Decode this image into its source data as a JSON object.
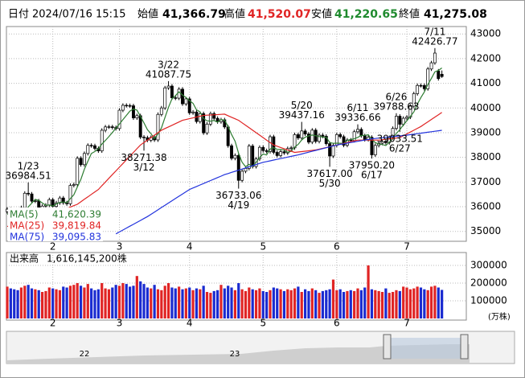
{
  "chart_data": {
    "type": "candlestick",
    "header": {
      "date_label": "日付",
      "date": "2024/07/16 15:15",
      "open_label": "始値",
      "open": "41,366.79",
      "high_label": "高値",
      "high": "41,520.07",
      "low_label": "安値",
      "low": "41,220.65",
      "close_label": "終値",
      "close": "41,275.08"
    },
    "categories": [
      null,
      null,
      null,
      null,
      null,
      null,
      null,
      null,
      null,
      null,
      null,
      null,
      null,
      "2",
      null,
      null,
      null,
      null,
      null,
      null,
      null,
      null,
      null,
      null,
      null,
      null,
      null,
      null,
      null,
      null,
      null,
      null,
      "3",
      null,
      null,
      null,
      null,
      null,
      null,
      null,
      null,
      null,
      null,
      null,
      null,
      null,
      null,
      null,
      null,
      null,
      null,
      null,
      "4",
      null,
      null,
      null,
      null,
      null,
      null,
      null,
      null,
      null,
      null,
      null,
      null,
      null,
      null,
      null,
      null,
      null,
      null,
      null,
      null,
      "5",
      null,
      null,
      null,
      null,
      null,
      null,
      null,
      null,
      null,
      null,
      null,
      null,
      null,
      null,
      null,
      null,
      null,
      null,
      null,
      null,
      "6",
      null,
      null,
      null,
      null,
      null,
      null,
      null,
      null,
      null,
      null,
      null,
      null,
      null,
      null,
      null,
      null,
      null,
      null,
      null,
      "7",
      null,
      null,
      null,
      null,
      null,
      null,
      null,
      null,
      null,
      null
    ],
    "open": [
      35800,
      35901,
      35619,
      35477,
      35466,
      35963,
      36546,
      36517,
      36226,
      36236,
      35751,
      36026,
      36065,
      36286,
      36011,
      36158,
      36354,
      36160,
      36119,
      36863,
      36897,
      37963,
      37703,
      38157,
      38487,
      38470,
      38363,
      38262,
      39098,
      39233,
      39239,
      39208,
      39166,
      39910,
      40109,
      40097,
      40090,
      39598,
      39688,
      38820,
      38797,
      38695,
      38807,
      38707,
      39740,
      40003,
      40815,
      40888,
      40414,
      40398,
      40762,
      40168,
      40369,
      39803,
      39838,
      39451,
      39773,
      38992,
      39347,
      39773,
      39581,
      39442,
      39523,
      39232,
      38471,
      37962,
      38079,
      37068,
      37438,
      37552,
      38460,
      37628,
      37934,
      38405,
      38274,
      38236,
      38835,
      38202,
      38073,
      38229,
      38179,
      38356,
      38385,
      38920,
      38787,
      39069,
      38946,
      38617,
      39103,
      38646,
      38900,
      38855,
      38556,
      38054,
      38487,
      38923,
      38837,
      38490,
      38703,
      38683,
      39038,
      39134,
      38876,
      38720,
      38814,
      38102,
      38482,
      38570,
      38633,
      38596,
      38804,
      39173,
      39667,
      39341,
      39583,
      39631,
      40074,
      40580,
      40913,
      40912,
      40780,
      41580,
      41831,
      41500,
      41366.79
    ],
    "high": [
      35981,
      35981,
      35699,
      35557,
      36043,
      36626,
      36984.51,
      36597,
      36316,
      36316,
      36106,
      36145,
      36366,
      36366,
      36238,
      36434,
      36434,
      36240,
      36943,
      36977,
      38043,
      38043,
      38237,
      38567,
      38567,
      38550,
      38443,
      39178,
      39313,
      39319,
      39319,
      39288,
      39990,
      40189,
      40189,
      40177,
      40170,
      39768,
      39768,
      38900,
      38877,
      38887,
      38887,
      39820,
      40083,
      40895,
      41087.75,
      40968,
      40494,
      40842,
      40842,
      40449,
      40449,
      39918,
      39918,
      39853,
      39853,
      39427,
      39853,
      39853,
      39661,
      39603,
      39603,
      39312,
      38551,
      38159,
      38159,
      37518,
      37632,
      38540,
      38540,
      38014,
      38485,
      38485,
      38354,
      38915,
      38915,
      38282,
      38309,
      38309,
      38436,
      38465,
      39000,
      39000,
      39437.16,
      39149,
      39026,
      39183,
      39183,
      38980,
      38980,
      38935,
      38636,
      38567,
      39003,
      39003,
      38917,
      38783,
      38783,
      39118,
      39336.66,
      39214,
      38956,
      38894,
      38894,
      38562,
      38650,
      38713,
      38713,
      38884,
      39253,
      39788.63,
      39747,
      39663,
      39711,
      40154,
      40660,
      40993,
      40993,
      40992,
      41660,
      41911,
      42426.77,
      41580,
      41520.07
    ],
    "low": [
      35720,
      35539,
      35397,
      35386,
      35386,
      35883,
      36437,
      36146,
      36146,
      35671,
      35671,
      35946,
      35985,
      35931,
      35931,
      36078,
      36080,
      36039,
      36039,
      36783,
      36817,
      37623,
      37623,
      38077,
      38390,
      38283,
      38182,
      38182,
      39018,
      39153,
      39128,
      39086,
      39086,
      39830,
      40017,
      40010,
      39518,
      39518,
      38740,
      38271.38,
      38615,
      38615,
      38627,
      38627,
      39660,
      39923,
      40735,
      40334,
      40318,
      40318,
      40088,
      40088,
      39723,
      39723,
      39371,
      39371,
      38912,
      38912,
      39267,
      39501,
      39362,
      39362,
      39152,
      38391,
      37882,
      37882,
      36733.06,
      36988,
      37358,
      37472,
      37548,
      37548,
      37854,
      38194,
      38156,
      38156,
      38122,
      37993,
      37993,
      38099,
      38099,
      38276,
      38305,
      38707,
      38707,
      38866,
      38537,
      38537,
      38566,
      38566,
      38775,
      38476,
      37617,
      37974,
      38407,
      38757,
      38410,
      38410,
      38603,
      38603,
      38958,
      38796,
      38640,
      38640,
      37950.2,
      38022,
      38402,
      38490,
      38516,
      38516,
      38724,
      39093,
      39033.51,
      39261,
      39503,
      39551,
      39994,
      40500,
      40832,
      40700,
      40700,
      41500,
      41751,
      41110,
      41220.65
    ],
    "close": [
      35901,
      35619,
      35477,
      35466,
      35963,
      36546,
      36517,
      36226,
      36236,
      35751,
      36026,
      36065,
      36286,
      36011,
      36158,
      36354,
      36160,
      36119,
      36863,
      36897,
      37963,
      37703,
      38157,
      38487,
      38470,
      38363,
      38262,
      39098,
      39233,
      39239,
      39208,
      39166,
      39910,
      40109,
      40097,
      40090,
      39598,
      39688,
      38820,
      38797,
      38695,
      38807,
      38707,
      39740,
      40003,
      40815,
      40888,
      40414,
      40398,
      40762,
      40168,
      40369,
      39803,
      39838,
      39451,
      39773,
      38992,
      39347,
      39773,
      39581,
      39442,
      39523,
      39232,
      38471,
      37962,
      38079,
      37068,
      37438,
      37552,
      38460,
      37628,
      37934,
      38405,
      38274,
      38236,
      38835,
      38202,
      38073,
      38229,
      38179,
      38356,
      38385,
      38920,
      38787,
      39069,
      38946,
      38617,
      39103,
      38646,
      38900,
      38855,
      38556,
      38054,
      38487,
      38923,
      38837,
      38490,
      38703,
      38683,
      39038,
      39134,
      38876,
      38720,
      38814,
      38102,
      38482,
      38570,
      38633,
      38596,
      38804,
      39173,
      39667,
      39341,
      39583,
      39631,
      40074,
      40580,
      40913,
      40912,
      40780,
      41580,
      41831,
      42224,
      41190,
      41275.08
    ],
    "up_color": "#ffffff",
    "down_color": "#000000",
    "series": [
      {
        "name": "MA(5)",
        "color": "#2e7d32",
        "value_label": "41,620.39",
        "values": [
          35700,
          35700,
          35650,
          35600,
          35685,
          35814,
          35994,
          36144,
          36298,
          36255,
          36151,
          36061,
          36073,
          36028,
          36109,
          36175,
          36194,
          36160,
          36331,
          36479,
          36800,
          37109,
          37517,
          37841,
          38156,
          38236,
          38348,
          38536,
          38685,
          38839,
          39008,
          39189,
          39351,
          39526,
          39698,
          39874,
          39961,
          39916,
          39659,
          39399,
          39120,
          38961,
          38765,
          38949,
          39190,
          39614,
          40031,
          40372,
          40504,
          40655,
          40526,
          40422,
          40300,
          40188,
          39926,
          39847,
          39571,
          39480,
          39467,
          39493,
          39427,
          39533,
          39510,
          39250,
          38926,
          38653,
          38162,
          37804,
          37620,
          37719,
          37629,
          37802,
          37996,
          38140,
          38095,
          38337,
          38390,
          38324,
          38315,
          38304,
          38208,
          38244,
          38414,
          38525,
          38703,
          38821,
          38868,
          38904,
          38876,
          38842,
          38824,
          38812,
          38602,
          38570,
          38575,
          38571,
          38558,
          38688,
          38727,
          38750,
          38810,
          38887,
          38890,
          38916,
          38729,
          38599,
          38538,
          38520,
          38477,
          38617,
          38755,
          38975,
          39116,
          39314,
          39479,
          39659,
          39842,
          40156,
          40422,
          40652,
          40953,
          41203,
          41465,
          41521,
          41620.39
        ]
      },
      {
        "name": "MA(25)",
        "color": "#e02424",
        "value_label": "39,819.84",
        "values": [
          35200,
          35238,
          35275,
          35313,
          35350,
          35388,
          35425,
          35463,
          35500,
          35538,
          35575,
          35613,
          35650,
          35706,
          35763,
          35819,
          35875,
          35931,
          35988,
          36044,
          36100,
          36200,
          36300,
          36400,
          36500,
          36600,
          36700,
          36850,
          37000,
          37150,
          37300,
          37450,
          37600,
          37750,
          37900,
          38050,
          38200,
          38350,
          38500,
          38600,
          38700,
          38800,
          38900,
          39000,
          39100,
          39167,
          39233,
          39300,
          39367,
          39433,
          39500,
          39533,
          39567,
          39600,
          39633,
          39667,
          39700,
          39708,
          39717,
          39725,
          39733,
          39742,
          39750,
          39688,
          39625,
          39563,
          39500,
          39400,
          39300,
          39200,
          39100,
          39000,
          38900,
          38800,
          38700,
          38600,
          38500,
          38450,
          38400,
          38350,
          38300,
          38250,
          38200,
          38217,
          38233,
          38250,
          38267,
          38283,
          38300,
          38333,
          38367,
          38400,
          38433,
          38467,
          38500,
          38533,
          38567,
          38600,
          38633,
          38667,
          38700,
          38700,
          38700,
          38700,
          38700,
          38700,
          38700,
          38717,
          38733,
          38750,
          38767,
          38783,
          38800,
          38875,
          38950,
          39025,
          39100,
          39175,
          39250,
          39345,
          39440,
          39535,
          39630,
          39725,
          39819.84
        ]
      },
      {
        "name": "MA(75)",
        "color": "#2233dd",
        "value_label": "39,095.83",
        "values": [
          null,
          null,
          null,
          null,
          null,
          null,
          null,
          null,
          null,
          null,
          null,
          null,
          null,
          null,
          null,
          null,
          null,
          null,
          null,
          null,
          null,
          null,
          null,
          null,
          null,
          null,
          null,
          null,
          null,
          null,
          null,
          34900,
          34978,
          35056,
          35133,
          35211,
          35289,
          35367,
          35444,
          35522,
          35600,
          35692,
          35783,
          35875,
          35967,
          36058,
          36150,
          36242,
          36333,
          36425,
          36517,
          36608,
          36700,
          36760,
          36820,
          36880,
          36940,
          37000,
          37060,
          37120,
          37180,
          37240,
          37300,
          37345,
          37391,
          37436,
          37482,
          37527,
          37573,
          37618,
          37664,
          37709,
          37755,
          37800,
          37830,
          37860,
          37890,
          37920,
          37950,
          37980,
          38010,
          38040,
          38070,
          38100,
          38136,
          38173,
          38209,
          38245,
          38282,
          38318,
          38355,
          38391,
          38427,
          38464,
          38500,
          38525,
          38550,
          38575,
          38600,
          38625,
          38650,
          38675,
          38700,
          38725,
          38750,
          38765,
          38780,
          38795,
          38810,
          38825,
          38840,
          38855,
          38870,
          38885,
          38900,
          38920,
          38939,
          38959,
          38978,
          38998,
          39017,
          39037,
          39056,
          39076,
          39095.83
        ]
      }
    ],
    "ylim": [
      34600,
      43300
    ],
    "yticks": [
      35000,
      36000,
      37000,
      38000,
      39000,
      40000,
      41000,
      42000,
      43000
    ],
    "grid": true,
    "annotations": [
      {
        "date": "1/23",
        "value": 36984.51
      },
      {
        "date": "3/12",
        "value": 38271.38
      },
      {
        "date": "3/22",
        "value": 41087.75
      },
      {
        "date": "4/19",
        "value": 36733.06
      },
      {
        "date": "5/20",
        "value": 39437.16
      },
      {
        "date": "5/30",
        "value": 37617,
        "label": "37617.00"
      },
      {
        "date": "6/11",
        "value": 39336.66
      },
      {
        "date": "6/17",
        "value": 37950.2,
        "label": "37950.20"
      },
      {
        "date": "6/26",
        "value": 39788.63
      },
      {
        "date": "6/27",
        "value": 39033.51
      },
      {
        "date": "7/11",
        "value": 42426.77
      }
    ],
    "volume": {
      "label": "出来高",
      "value_label": "1,616,145,200株",
      "unit": "(万株)",
      "up_color": "#e02424",
      "down_color": "#1a2bd0",
      "ylim": [
        0,
        350000
      ],
      "yticks": [
        100000,
        200000,
        300000
      ],
      "values": [
        180000,
        170000,
        165000,
        160000,
        175000,
        185000,
        190000,
        170000,
        165000,
        160000,
        150000,
        155000,
        175000,
        170000,
        165000,
        160000,
        180000,
        175000,
        185000,
        190000,
        200000,
        185000,
        175000,
        195000,
        170000,
        160000,
        165000,
        200000,
        170000,
        165000,
        175000,
        190000,
        185000,
        200000,
        195000,
        180000,
        185000,
        240000,
        210000,
        195000,
        175000,
        170000,
        190000,
        165000,
        160000,
        185000,
        200000,
        175000,
        170000,
        180000,
        165000,
        170000,
        175000,
        160000,
        170000,
        165000,
        185000,
        150000,
        145000,
        155000,
        160000,
        190000,
        170000,
        185000,
        175000,
        160000,
        200000,
        165000,
        155000,
        175000,
        165000,
        160000,
        170000,
        155000,
        150000,
        160000,
        175000,
        170000,
        165000,
        155000,
        165000,
        160000,
        170000,
        180000,
        150000,
        165000,
        155000,
        170000,
        160000,
        145000,
        155000,
        160000,
        165000,
        220000,
        160000,
        165000,
        150000,
        155000,
        160000,
        155000,
        170000,
        160000,
        175000,
        300000,
        165000,
        160000,
        155000,
        150000,
        170000,
        145000,
        150000,
        160000,
        155000,
        180000,
        175000,
        165000,
        170000,
        180000,
        175000,
        165000,
        160000,
        180000,
        185000,
        175000,
        161614.52
      ]
    },
    "navigator": {
      "labels": [
        "22",
        "23"
      ]
    }
  }
}
